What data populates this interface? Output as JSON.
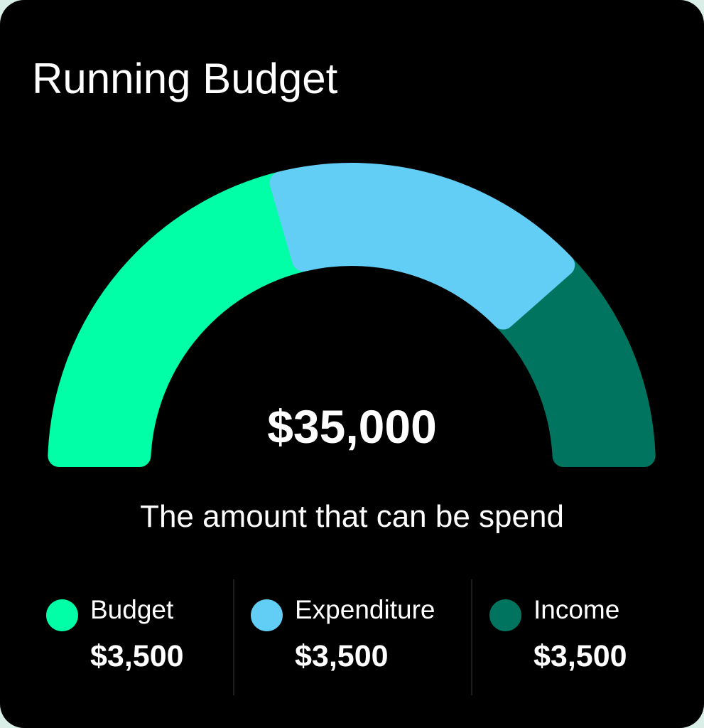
{
  "title": "Running Budget",
  "chart_data": {
    "type": "gauge",
    "total_label": "$35,000",
    "subtitle": "The amount that can be spend",
    "segments": [
      {
        "name": "Budget",
        "fraction": 0.41,
        "color": "#00ffa6"
      },
      {
        "name": "Expenditure",
        "fraction": 0.36,
        "color": "#62cdf5"
      },
      {
        "name": "Income",
        "fraction": 0.23,
        "color": "#00745f"
      }
    ]
  },
  "legend": [
    {
      "label": "Budget",
      "value": "$3,500",
      "color": "#00ffa6"
    },
    {
      "label": "Expenditure",
      "value": "$3,500",
      "color": "#62cdf5"
    },
    {
      "label": "Income",
      "value": "$3,500",
      "color": "#00745f"
    }
  ]
}
